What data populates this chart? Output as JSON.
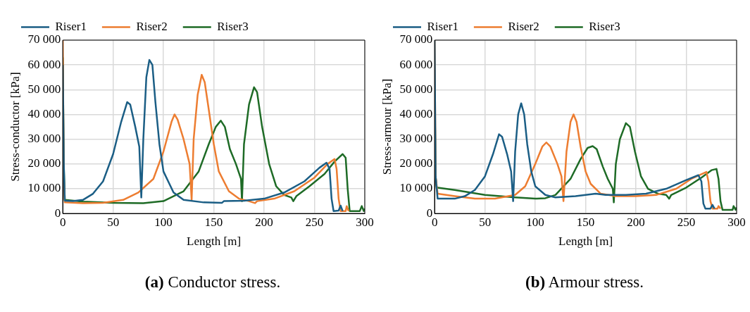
{
  "chart_data": [
    {
      "type": "line",
      "xlabel": "Length [m]",
      "ylabel": "Stress-conductor [kPa]",
      "annotations": [
        "(a) Conductor stress."
      ],
      "xlim": [
        0,
        300
      ],
      "xticks": [
        0,
        50,
        100,
        150,
        200,
        250,
        300
      ],
      "ylim": [
        0,
        70000
      ],
      "yticks": [
        0,
        {
          "value": 10000,
          "label": "10 000"
        },
        {
          "value": 20000,
          "label": "20 000"
        },
        {
          "value": 30000,
          "label": "30 000"
        },
        {
          "value": 40000,
          "label": "40 000"
        },
        {
          "value": 50000,
          "label": "50 000"
        },
        {
          "value": 60000,
          "label": "60 000"
        },
        {
          "value": 70000,
          "label": "70 000"
        }
      ],
      "grid": true,
      "legend": "top",
      "series": [
        {
          "name": "Riser1",
          "color": "#1b5e85",
          "x": [
            0,
            1,
            2,
            10,
            20,
            30,
            40,
            50,
            58,
            64,
            67,
            72,
            76,
            78,
            80,
            83,
            86,
            89,
            92,
            96,
            100,
            110,
            120,
            140,
            158,
            160,
            180,
            200,
            220,
            240,
            255,
            262,
            265,
            267,
            269,
            274,
            276,
            278
          ],
          "values": [
            60000,
            20000,
            5200,
            5000,
            5500,
            8000,
            13000,
            24000,
            37000,
            45000,
            44000,
            35000,
            27000,
            6500,
            30000,
            55000,
            62000,
            60000,
            45000,
            28000,
            17000,
            8500,
            5500,
            4500,
            4300,
            5000,
            5200,
            6000,
            8500,
            13000,
            18500,
            20500,
            18000,
            6000,
            1000,
            1200,
            3200,
            1000
          ]
        },
        {
          "name": "Riser2",
          "color": "#ed7d31",
          "x": [
            0,
            1,
            2,
            20,
            40,
            60,
            75,
            90,
            100,
            108,
            111,
            114,
            120,
            126,
            128,
            130,
            134,
            138,
            141,
            145,
            150,
            155,
            165,
            175,
            185,
            191,
            193,
            210,
            230,
            250,
            263,
            270,
            272,
            274,
            276,
            281,
            282,
            284
          ],
          "values": [
            70000,
            15000,
            4500,
            4200,
            4300,
            5500,
            8500,
            14000,
            25000,
            37000,
            40000,
            38000,
            30000,
            20000,
            5500,
            30000,
            48000,
            56000,
            53000,
            42000,
            28000,
            17000,
            9000,
            6000,
            5000,
            4200,
            5000,
            6000,
            9000,
            14500,
            20000,
            22000,
            18000,
            6000,
            1000,
            1000,
            3000,
            1000
          ]
        },
        {
          "name": "Riser3",
          "color": "#1e6b26",
          "x": [
            0,
            1,
            2,
            20,
            50,
            80,
            100,
            120,
            135,
            145,
            152,
            157,
            161,
            166,
            172,
            177,
            178,
            180,
            185,
            190,
            193,
            198,
            205,
            212,
            220,
            227,
            229,
            232,
            245,
            260,
            270,
            278,
            281,
            283,
            285,
            295,
            297,
            299,
            300
          ],
          "values": [
            63000,
            20000,
            5500,
            4800,
            4300,
            4200,
            5000,
            9000,
            17000,
            28000,
            35000,
            37500,
            35000,
            26000,
            20000,
            14000,
            5000,
            28000,
            44000,
            51000,
            49000,
            35000,
            20000,
            11000,
            7500,
            6500,
            5000,
            7000,
            11000,
            16000,
            21000,
            24000,
            22500,
            10000,
            1000,
            1000,
            3000,
            1000,
            2000
          ]
        }
      ]
    },
    {
      "type": "line",
      "xlabel": "Length [m]",
      "ylabel": "Stress-armour [kPa]",
      "annotations": [
        "(b) Armour stress."
      ],
      "xlim": [
        0,
        300
      ],
      "xticks": [
        0,
        50,
        100,
        150,
        200,
        250,
        300
      ],
      "ylim": [
        0,
        70000
      ],
      "yticks": [
        0,
        {
          "value": 10000,
          "label": "10 000"
        },
        {
          "value": 20000,
          "label": "20 000"
        },
        {
          "value": 30000,
          "label": "30 000"
        },
        {
          "value": 40000,
          "label": "40 000"
        },
        {
          "value": 50000,
          "label": "50 000"
        },
        {
          "value": 60000,
          "label": "60 000"
        },
        {
          "value": 70000,
          "label": "70 000"
        }
      ],
      "grid": true,
      "legend": "top",
      "series": [
        {
          "name": "Riser1",
          "color": "#1b5e85",
          "x": [
            0,
            1,
            3,
            20,
            30,
            40,
            50,
            58,
            64,
            67,
            72,
            76,
            78,
            80,
            83,
            86,
            89,
            92,
            96,
            100,
            110,
            120,
            140,
            160,
            170,
            190,
            210,
            230,
            250,
            262,
            265,
            267,
            269,
            274,
            276,
            278
          ],
          "values": [
            70000,
            15000,
            6000,
            6000,
            7000,
            9500,
            15000,
            24000,
            32000,
            31000,
            24000,
            17000,
            5000,
            25000,
            40000,
            44500,
            40000,
            28000,
            17000,
            11000,
            7500,
            6500,
            7000,
            8000,
            7500,
            7500,
            8000,
            10000,
            13500,
            15500,
            13000,
            4000,
            2000,
            2000,
            3500,
            2000
          ]
        },
        {
          "name": "Riser2",
          "color": "#ed7d31",
          "x": [
            0,
            1,
            3,
            20,
            40,
            60,
            80,
            90,
            100,
            107,
            111,
            115,
            122,
            126,
            128,
            131,
            135,
            138,
            141,
            145,
            150,
            155,
            165,
            180,
            200,
            220,
            240,
            255,
            270,
            272,
            274,
            276,
            281,
            282,
            284
          ],
          "values": [
            70000,
            15000,
            8000,
            7000,
            6000,
            6000,
            7500,
            11000,
            20000,
            27000,
            28700,
            27000,
            20000,
            15000,
            5000,
            25000,
            37000,
            40000,
            37000,
            27000,
            17000,
            12000,
            8000,
            7000,
            7000,
            7500,
            10000,
            14000,
            16800,
            13000,
            5000,
            2000,
            2000,
            3000,
            2000
          ]
        },
        {
          "name": "Riser3",
          "color": "#1e6b26",
          "x": [
            0,
            1,
            2,
            20,
            50,
            80,
            100,
            110,
            120,
            135,
            145,
            152,
            157,
            161,
            167,
            172,
            177,
            178,
            180,
            184,
            190,
            194,
            199,
            205,
            212,
            222,
            230,
            233,
            235,
            250,
            265,
            275,
            280,
            282,
            284,
            286,
            296,
            297,
            299,
            300
          ],
          "values": [
            51000,
            15000,
            10500,
            9500,
            7500,
            6500,
            6000,
            6200,
            7500,
            14000,
            22000,
            26500,
            27200,
            26000,
            19000,
            14000,
            10000,
            4500,
            20000,
            30000,
            36500,
            35000,
            25000,
            15000,
            10000,
            8000,
            7500,
            6000,
            7500,
            10500,
            14500,
            17500,
            18000,
            14000,
            5000,
            1500,
            1500,
            3000,
            1500,
            2500
          ]
        }
      ]
    }
  ]
}
